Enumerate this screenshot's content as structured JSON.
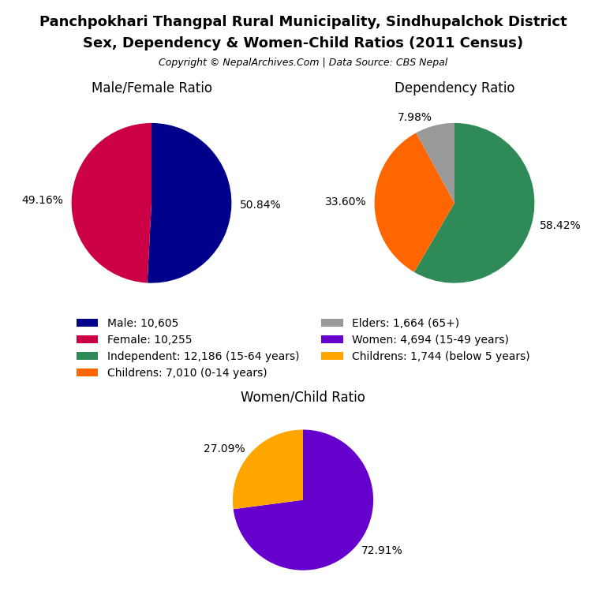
{
  "title": "Panchpokhari Thangpal Rural Municipality, Sindhupalchok District",
  "subtitle": "Sex, Dependency & Women-Child Ratios (2011 Census)",
  "annotations": [
    "Copyright © NepalArchives.Com | Data Source: CBS Nepal"
  ],
  "legend": "center",
  "chart_data": [
    {
      "type": "pie",
      "title": "Male/Female Ratio",
      "categories": [
        "Male: 10,605",
        "Female: 10,255"
      ],
      "values": [
        50.84,
        49.16
      ],
      "value_labels": [
        "50.84%",
        "49.16%"
      ],
      "colors": [
        "#00008B",
        "#CC0044"
      ],
      "data_labels": true
    },
    {
      "type": "pie",
      "title": "Dependency Ratio",
      "categories": [
        "Independent: 12,186 (15-64 years)",
        "Childrens: 7,010 (0-14 years)",
        "Elders: 1,664 (65+)"
      ],
      "values": [
        58.42,
        33.6,
        7.98
      ],
      "value_labels": [
        "58.42%",
        "33.60%",
        "7.98%"
      ],
      "colors": [
        "#2E8B57",
        "#FF6600",
        "#999999"
      ],
      "data_labels": true
    },
    {
      "type": "pie",
      "title": "Women/Child Ratio",
      "categories": [
        "Women: 4,694 (15-49 years)",
        "Childrens: 1,744 (below 5 years)"
      ],
      "values": [
        72.91,
        27.09
      ],
      "value_labels": [
        "72.91%",
        "27.09%"
      ],
      "colors": [
        "#6600CC",
        "#FFA500"
      ],
      "data_labels": true
    }
  ]
}
